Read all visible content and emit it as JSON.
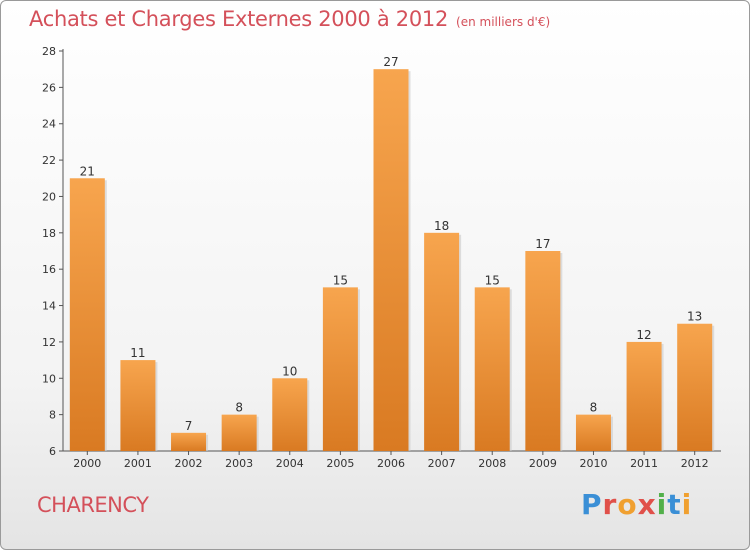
{
  "header": {
    "title": "Achats et Charges Externes 2000 à 2012",
    "unit": "(en milliers d'€)"
  },
  "footer": {
    "commune": "CHARENCY",
    "logo": "Proxiti"
  },
  "colors": {
    "title": "#d4505a",
    "bar_light": "#f7a54e",
    "bar_dark": "#d97a22"
  },
  "chart_data": {
    "type": "bar",
    "title": "Achats et Charges Externes 2000 à 2012",
    "subtitle": "(en milliers d'€)",
    "categories": [
      "2000",
      "2001",
      "2002",
      "2003",
      "2004",
      "2005",
      "2006",
      "2007",
      "2008",
      "2009",
      "2010",
      "2011",
      "2012"
    ],
    "values": [
      21,
      11,
      7,
      8,
      10,
      15,
      27,
      18,
      15,
      17,
      8,
      12,
      13
    ],
    "ylim": [
      6,
      28
    ],
    "yticks": [
      6,
      8,
      10,
      12,
      14,
      16,
      18,
      20,
      22,
      24,
      26,
      28
    ],
    "grid": false,
    "legend": "none"
  }
}
